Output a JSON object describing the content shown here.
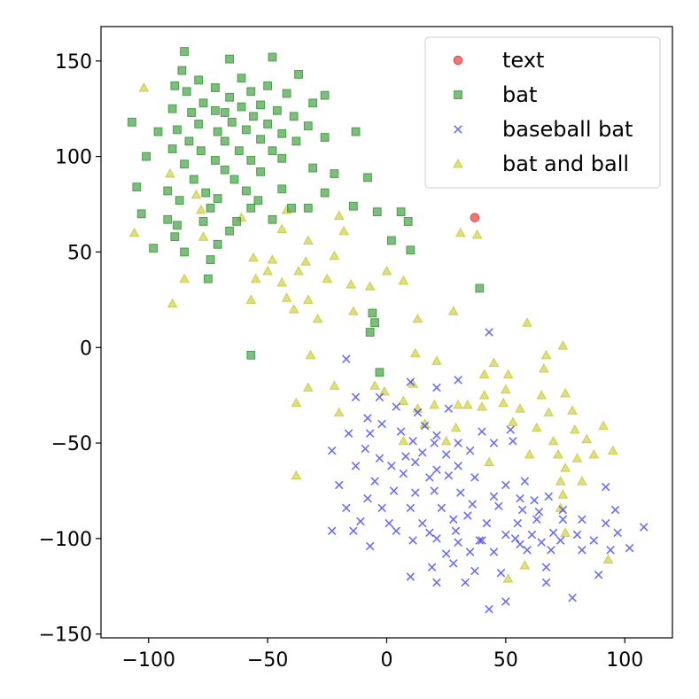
{
  "chart_data": {
    "type": "scatter",
    "title": "",
    "xlabel": "",
    "ylabel": "",
    "xlim": [
      -120,
      120
    ],
    "ylim": [
      -152,
      168
    ],
    "xticks": [
      -100,
      -50,
      0,
      50,
      100
    ],
    "yticks": [
      150,
      100,
      50,
      0,
      -50,
      -100,
      -150
    ],
    "xtick_labels": [
      "−100",
      "−50",
      "0",
      "50",
      "100"
    ],
    "ytick_labels": [
      "150",
      "100",
      "50",
      "0",
      "−50",
      "−100",
      "−150"
    ],
    "grid": false,
    "legend_position": "top-right",
    "series": [
      {
        "name": "text",
        "marker": "circle",
        "color": "#e8484a",
        "points": [
          [
            37,
            68
          ]
        ]
      },
      {
        "name": "bat",
        "marker": "square",
        "color": "#3a9a3a",
        "points": [
          [
            -85,
            155
          ],
          [
            -66,
            151
          ],
          [
            -48,
            152
          ],
          [
            -86,
            145
          ],
          [
            -37,
            143
          ],
          [
            -79,
            140
          ],
          [
            -61,
            141
          ],
          [
            -89,
            137
          ],
          [
            -72,
            136
          ],
          [
            -50,
            137
          ],
          [
            -84,
            134
          ],
          [
            -57,
            134
          ],
          [
            -42,
            133
          ],
          [
            -26,
            132
          ],
          [
            -66,
            131
          ],
          [
            -77,
            128
          ],
          [
            -53,
            127
          ],
          [
            -31,
            128
          ],
          [
            -90,
            125
          ],
          [
            -72,
            124
          ],
          [
            -61,
            126
          ],
          [
            -46,
            124
          ],
          [
            -82,
            123
          ],
          [
            -68,
            123
          ],
          [
            -56,
            121
          ],
          [
            -39,
            121
          ],
          [
            -107,
            118
          ],
          [
            -79,
            117
          ],
          [
            -65,
            118
          ],
          [
            -50,
            117
          ],
          [
            -33,
            116
          ],
          [
            -88,
            114
          ],
          [
            -71,
            113
          ],
          [
            -59,
            114
          ],
          [
            -44,
            112
          ],
          [
            -96,
            113
          ],
          [
            -13,
            113
          ],
          [
            -83,
            108
          ],
          [
            -68,
            108
          ],
          [
            -53,
            109
          ],
          [
            -38,
            108
          ],
          [
            -26,
            110
          ],
          [
            -78,
            103
          ],
          [
            -62,
            103
          ],
          [
            -48,
            103
          ],
          [
            -90,
            104
          ],
          [
            -101,
            100
          ],
          [
            -72,
            98
          ],
          [
            -57,
            98
          ],
          [
            -44,
            99
          ],
          [
            -31,
            94
          ],
          [
            -85,
            96
          ],
          [
            -68,
            93
          ],
          [
            -53,
            92
          ],
          [
            -81,
            88
          ],
          [
            -64,
            88
          ],
          [
            -22,
            91
          ],
          [
            -8,
            89
          ],
          [
            -105,
            84
          ],
          [
            -92,
            82
          ],
          [
            -76,
            81
          ],
          [
            -59,
            82
          ],
          [
            -44,
            83
          ],
          [
            -26,
            81
          ],
          [
            -71,
            78
          ],
          [
            -54,
            77
          ],
          [
            -87,
            77
          ],
          [
            -40,
            73
          ],
          [
            -14,
            74
          ],
          [
            -74,
            73
          ],
          [
            -57,
            73
          ],
          [
            -103,
            70
          ],
          [
            -33,
            73
          ],
          [
            -63,
            66
          ],
          [
            -48,
            67
          ],
          [
            -92,
            67
          ],
          [
            -77,
            66
          ],
          [
            -88,
            64
          ],
          [
            -66,
            61
          ],
          [
            -4,
            71
          ],
          [
            6,
            71
          ],
          [
            9,
            66
          ],
          [
            -89,
            58
          ],
          [
            -71,
            54
          ],
          [
            -98,
            52
          ],
          [
            -85,
            50
          ],
          [
            2,
            56
          ],
          [
            10,
            51
          ],
          [
            -74,
            46
          ],
          [
            -75,
            36
          ],
          [
            39,
            31
          ],
          [
            -6,
            18
          ],
          [
            -5,
            13
          ],
          [
            -7,
            8
          ],
          [
            -57,
            -4
          ],
          [
            -3,
            -13
          ]
        ]
      },
      {
        "name": "baseball bat",
        "marker": "x",
        "color": "#3c3cf0",
        "points": [
          [
            43,
            8
          ],
          [
            -17,
            -6
          ],
          [
            10,
            -18
          ],
          [
            21,
            -21
          ],
          [
            30,
            -17
          ],
          [
            -13,
            -26
          ],
          [
            -3,
            -26
          ],
          [
            4,
            -31
          ],
          [
            13,
            -34
          ],
          [
            26,
            -32
          ],
          [
            -8,
            -37
          ],
          [
            -2,
            -40
          ],
          [
            16,
            -41
          ],
          [
            -16,
            -45
          ],
          [
            -7,
            -45
          ],
          [
            6,
            -44
          ],
          [
            21,
            -46
          ],
          [
            40,
            -44
          ],
          [
            52,
            -43
          ],
          [
            -23,
            -54
          ],
          [
            -9,
            -53
          ],
          [
            11,
            -49
          ],
          [
            20,
            -50
          ],
          [
            30,
            -50
          ],
          [
            45,
            -50
          ],
          [
            53,
            -49
          ],
          [
            -3,
            -58
          ],
          [
            8,
            -57
          ],
          [
            15,
            -55
          ],
          [
            25,
            -56
          ],
          [
            35,
            -54
          ],
          [
            -13,
            -62
          ],
          [
            2,
            -62
          ],
          [
            12,
            -60
          ],
          [
            21,
            -64
          ],
          [
            30,
            -62
          ],
          [
            -20,
            -72
          ],
          [
            -5,
            -70
          ],
          [
            7,
            -66
          ],
          [
            18,
            -68
          ],
          [
            26,
            -67
          ],
          [
            37,
            -68
          ],
          [
            50,
            -72
          ],
          [
            58,
            -70
          ],
          [
            3,
            -75
          ],
          [
            12,
            -76
          ],
          [
            20,
            -75
          ],
          [
            31,
            -76
          ],
          [
            45,
            -78
          ],
          [
            56,
            -79
          ],
          [
            68,
            -78
          ],
          [
            -8,
            -79
          ],
          [
            -17,
            -84
          ],
          [
            -2,
            -84
          ],
          [
            10,
            -84
          ],
          [
            23,
            -84
          ],
          [
            36,
            -82
          ],
          [
            47,
            -83
          ],
          [
            57,
            -85
          ],
          [
            64,
            -86
          ],
          [
            74,
            -85
          ],
          [
            96,
            -85
          ],
          [
            -11,
            -91
          ],
          [
            1,
            -92
          ],
          [
            15,
            -92
          ],
          [
            28,
            -90
          ],
          [
            42,
            -92
          ],
          [
            55,
            -92
          ],
          [
            63,
            -90
          ],
          [
            74,
            -90
          ],
          [
            82,
            -90
          ],
          [
            92,
            -92
          ],
          [
            108,
            -94
          ],
          [
            -23,
            -96
          ],
          [
            -14,
            -96
          ],
          [
            4,
            -96
          ],
          [
            18,
            -97
          ],
          [
            29,
            -96
          ],
          [
            50,
            -98
          ],
          [
            61,
            -98
          ],
          [
            70,
            -97
          ],
          [
            80,
            -98
          ],
          [
            97,
            -97
          ],
          [
            -7,
            -104
          ],
          [
            11,
            -101
          ],
          [
            21,
            -100
          ],
          [
            30,
            -102
          ],
          [
            40,
            -101
          ],
          [
            56,
            -103
          ],
          [
            65,
            -102
          ],
          [
            73,
            -101
          ],
          [
            87,
            -101
          ],
          [
            102,
            -105
          ],
          [
            25,
            -108
          ],
          [
            35,
            -107
          ],
          [
            45,
            -107
          ],
          [
            59,
            -106
          ],
          [
            69,
            -106
          ],
          [
            82,
            -106
          ],
          [
            94,
            -106
          ],
          [
            19,
            -115
          ],
          [
            28,
            -113
          ],
          [
            37,
            -117
          ],
          [
            48,
            -118
          ],
          [
            67,
            -115
          ],
          [
            89,
            -119
          ],
          [
            10,
            -120
          ],
          [
            21,
            -123
          ],
          [
            33,
            -123
          ],
          [
            78,
            -131
          ],
          [
            50,
            -133
          ],
          [
            43,
            -137
          ],
          [
            67,
            -123
          ],
          [
            92,
            -73
          ],
          [
            62,
            -80
          ],
          [
            34,
            -88
          ],
          [
            39,
            -101
          ],
          [
            54,
            -100
          ]
        ]
      },
      {
        "name": "bat and ball",
        "marker": "triangle",
        "color": "#c8c832",
        "points": [
          [
            -102,
            136
          ],
          [
            -91,
            91
          ],
          [
            -80,
            80
          ],
          [
            -106,
            60
          ],
          [
            -78,
            72
          ],
          [
            -61,
            68
          ],
          [
            -42,
            72
          ],
          [
            -77,
            58
          ],
          [
            -44,
            62
          ],
          [
            -20,
            69
          ],
          [
            -18,
            61
          ],
          [
            -56,
            47
          ],
          [
            -33,
            56
          ],
          [
            -48,
            46
          ],
          [
            -34,
            45
          ],
          [
            -22,
            48
          ],
          [
            -50,
            40
          ],
          [
            -37,
            40
          ],
          [
            -85,
            36
          ],
          [
            -55,
            36
          ],
          [
            -44,
            34
          ],
          [
            -25,
            36
          ],
          [
            -15,
            33
          ],
          [
            0,
            40
          ],
          [
            -7,
            32
          ],
          [
            7,
            35
          ],
          [
            -42,
            26
          ],
          [
            -57,
            25
          ],
          [
            -33,
            25
          ],
          [
            -90,
            23
          ],
          [
            -39,
            20
          ],
          [
            -14,
            19
          ],
          [
            -29,
            15
          ],
          [
            13,
            15
          ],
          [
            28,
            19
          ],
          [
            31,
            60
          ],
          [
            38,
            59
          ],
          [
            59,
            13
          ],
          [
            74,
            1
          ],
          [
            67,
            -4
          ],
          [
            -32,
            -4
          ],
          [
            12,
            -3
          ],
          [
            21,
            -7
          ],
          [
            45,
            -8
          ],
          [
            66,
            -11
          ],
          [
            41,
            -14
          ],
          [
            51,
            -14
          ],
          [
            -22,
            -20
          ],
          [
            -5,
            -20
          ],
          [
            11,
            -19
          ],
          [
            -33,
            -21
          ],
          [
            -1,
            -23
          ],
          [
            7,
            -28
          ],
          [
            41,
            -25
          ],
          [
            50,
            -22
          ],
          [
            65,
            -25
          ],
          [
            75,
            -24
          ],
          [
            -38,
            -29
          ],
          [
            13,
            -32
          ],
          [
            20,
            -30
          ],
          [
            30,
            -30
          ],
          [
            40,
            -31
          ],
          [
            49,
            -29
          ],
          [
            56,
            -32
          ],
          [
            68,
            -34
          ],
          [
            -20,
            -34
          ],
          [
            78,
            -33
          ],
          [
            16,
            -40
          ],
          [
            29,
            -42
          ],
          [
            53,
            -39
          ],
          [
            79,
            -43
          ],
          [
            91,
            -41
          ],
          [
            7,
            -49
          ],
          [
            25,
            -49
          ],
          [
            70,
            -49
          ],
          [
            84,
            -48
          ],
          [
            95,
            -54
          ],
          [
            60,
            -56
          ],
          [
            72,
            -56
          ],
          [
            87,
            -56
          ],
          [
            43,
            -60
          ],
          [
            80,
            -58
          ],
          [
            -38,
            -67
          ],
          [
            75,
            -63
          ],
          [
            73,
            -70
          ],
          [
            82,
            -70
          ],
          [
            74,
            -77
          ],
          [
            73,
            -84
          ],
          [
            75,
            -97
          ],
          [
            93,
            -111
          ],
          [
            58,
            -114
          ],
          [
            51,
            -121
          ],
          [
            34,
            -30
          ],
          [
            63,
            -42
          ]
        ]
      }
    ]
  }
}
